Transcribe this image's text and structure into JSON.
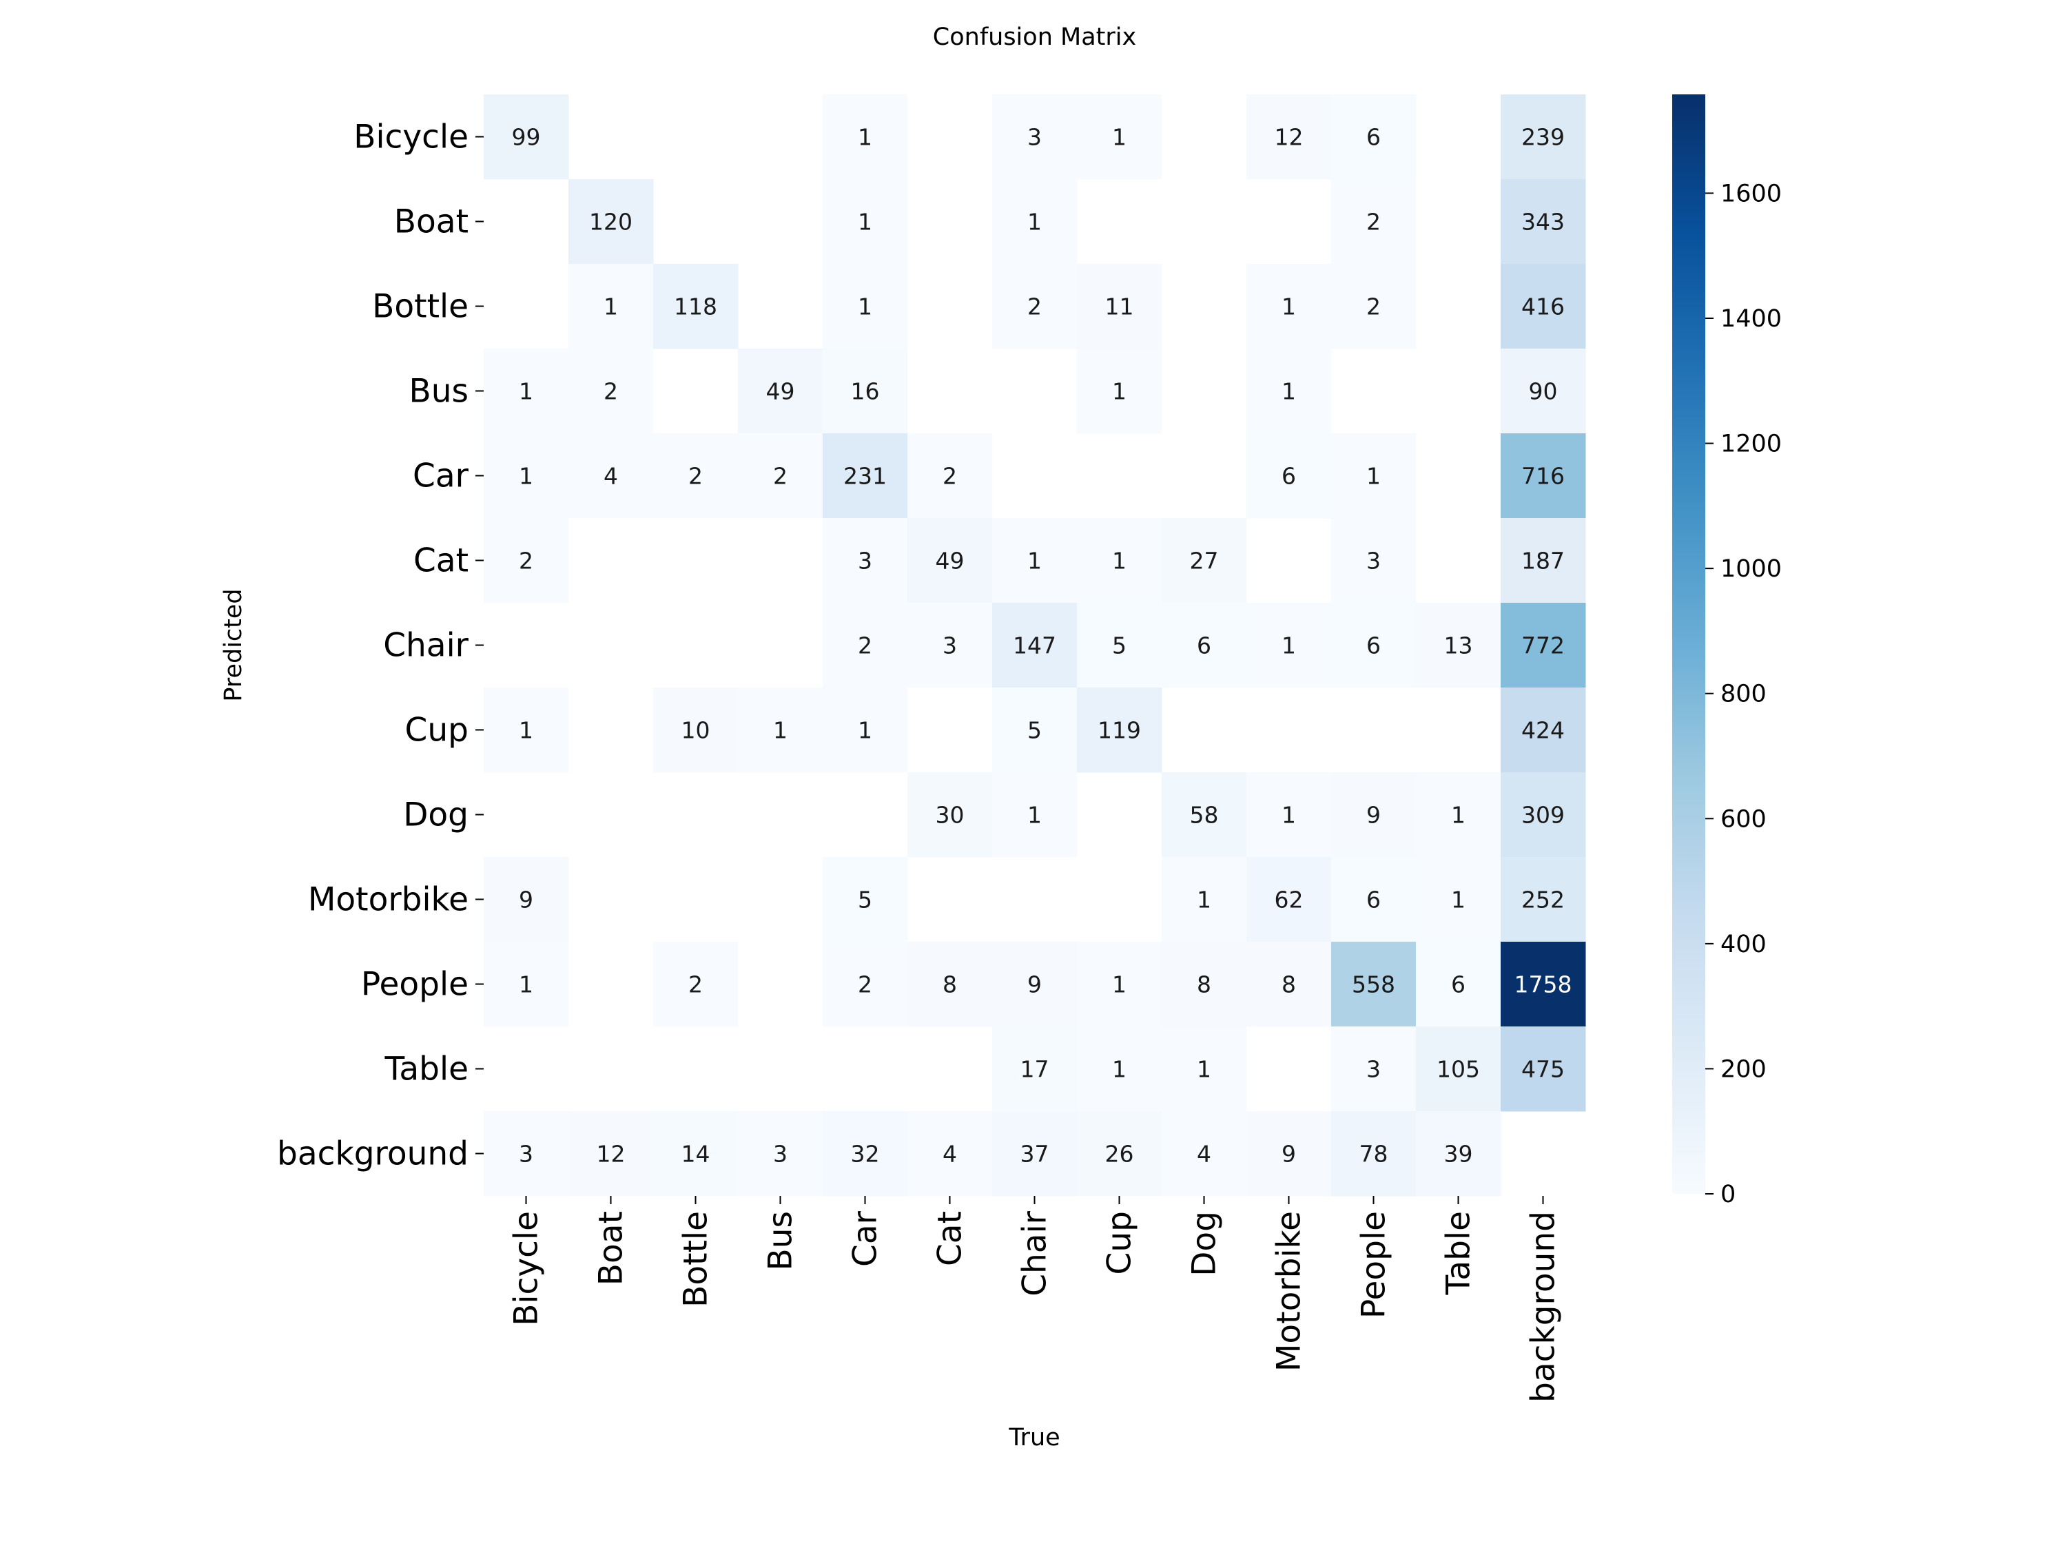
{
  "chart_data": {
    "type": "heatmap",
    "title": "Confusion Matrix",
    "xlabel": "True",
    "ylabel": "Predicted",
    "x_categories": [
      "Bicycle",
      "Boat",
      "Bottle",
      "Bus",
      "Car",
      "Cat",
      "Chair",
      "Cup",
      "Dog",
      "Motorbike",
      "People",
      "Table",
      "background"
    ],
    "y_categories": [
      "Bicycle",
      "Boat",
      "Bottle",
      "Bus",
      "Car",
      "Cat",
      "Chair",
      "Cup",
      "Dog",
      "Motorbike",
      "People",
      "Table",
      "background"
    ],
    "values": [
      [
        99,
        null,
        null,
        null,
        1,
        null,
        3,
        1,
        null,
        12,
        6,
        null,
        239
      ],
      [
        null,
        120,
        null,
        null,
        1,
        null,
        1,
        null,
        null,
        null,
        2,
        null,
        343
      ],
      [
        null,
        1,
        118,
        null,
        1,
        null,
        2,
        11,
        null,
        1,
        2,
        null,
        416
      ],
      [
        1,
        2,
        null,
        49,
        16,
        null,
        null,
        1,
        null,
        1,
        null,
        null,
        90
      ],
      [
        1,
        4,
        2,
        2,
        231,
        2,
        null,
        null,
        null,
        6,
        1,
        null,
        716
      ],
      [
        2,
        null,
        null,
        null,
        3,
        49,
        1,
        1,
        27,
        null,
        3,
        null,
        187
      ],
      [
        null,
        null,
        null,
        null,
        2,
        3,
        147,
        5,
        6,
        1,
        6,
        13,
        772
      ],
      [
        1,
        null,
        10,
        1,
        1,
        null,
        5,
        119,
        null,
        null,
        null,
        null,
        424
      ],
      [
        null,
        null,
        null,
        null,
        null,
        30,
        1,
        null,
        58,
        1,
        9,
        1,
        309
      ],
      [
        9,
        null,
        null,
        null,
        5,
        null,
        null,
        null,
        1,
        62,
        6,
        1,
        252
      ],
      [
        1,
        null,
        2,
        null,
        2,
        8,
        9,
        1,
        8,
        8,
        558,
        6,
        1758
      ],
      [
        null,
        null,
        null,
        null,
        null,
        null,
        17,
        1,
        1,
        null,
        3,
        105,
        475
      ],
      [
        3,
        12,
        14,
        3,
        32,
        4,
        37,
        26,
        4,
        9,
        78,
        39,
        null
      ]
    ],
    "colorbar": {
      "min": 0,
      "max": 1758,
      "ticks": [
        0,
        200,
        400,
        600,
        800,
        1000,
        1200,
        1400,
        1600
      ],
      "colormap": "Blues"
    },
    "grid": false
  }
}
